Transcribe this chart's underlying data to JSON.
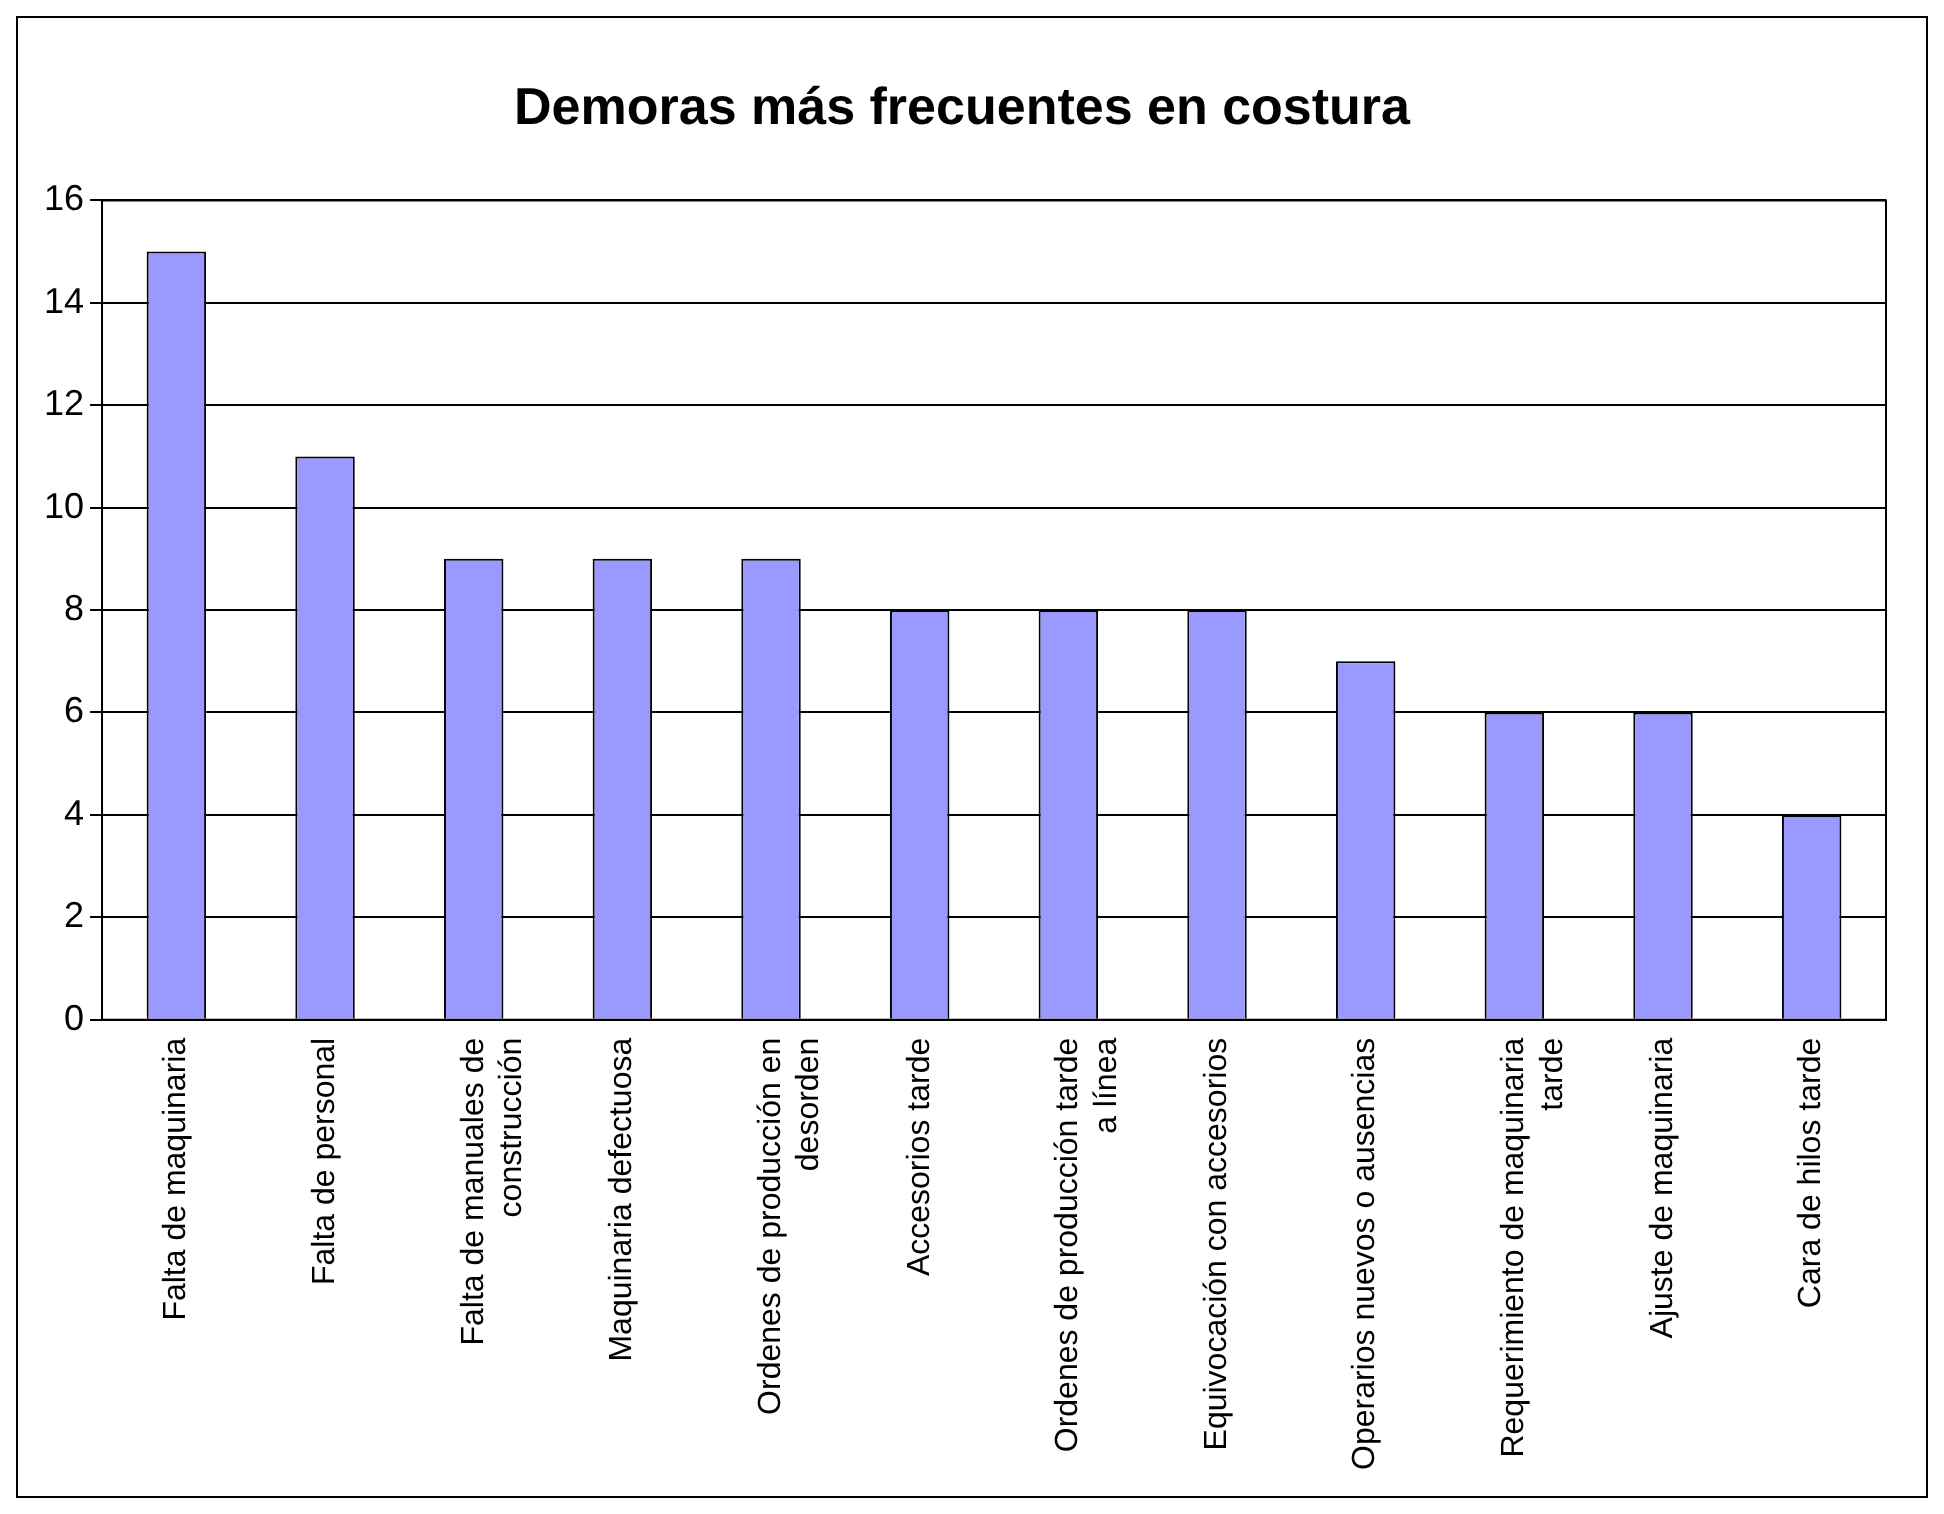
{
  "chart_data": {
    "type": "bar",
    "title": "Demoras más frecuentes en costura",
    "categories": [
      "Falta de maquinaria",
      "Falta de personal",
      "Falta de manuales de construcción",
      "Maquinaria defectuosa",
      "Ordenes de producción en desorden",
      "Accesorios tarde",
      "Ordenes de producción tarde a línea",
      "Equivocación con accesorios",
      "Operarios nuevos o ausencias",
      "Requerimiento de maquinaria tarde",
      "Ajuste de maquinaria",
      "Cara de hilos tarde"
    ],
    "values": [
      15,
      11,
      9,
      9,
      9,
      8,
      8,
      8,
      7,
      6,
      6,
      4
    ],
    "color": "#9999ff",
    "ylim": [
      0,
      16
    ],
    "yticks": [
      0,
      2,
      4,
      6,
      8,
      10,
      12,
      14,
      16
    ],
    "grid": "y",
    "legend": false
  }
}
